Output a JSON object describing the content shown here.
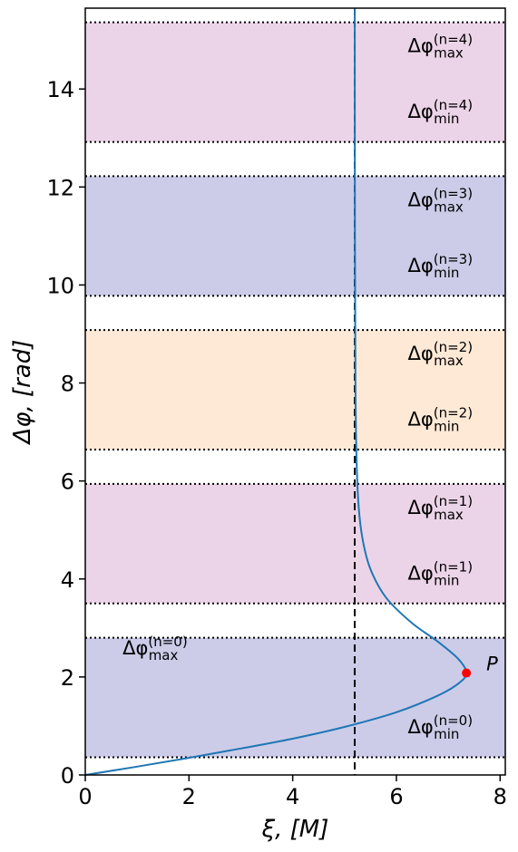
{
  "chart_data": {
    "type": "line",
    "xlabel": "ξ, [M]",
    "ylabel": "Δφ, [rad]",
    "xlim": [
      0,
      8.1
    ],
    "ylim": [
      0,
      15.65
    ],
    "x_ticks": [
      "0",
      "2",
      "4",
      "6",
      "8"
    ],
    "y_ticks": [
      "0",
      "2",
      "4",
      "6",
      "8",
      "10",
      "12",
      "14"
    ],
    "asymptote_x": 5.196,
    "bands": [
      {
        "n": 0,
        "min": 0.36,
        "max": 2.8,
        "color": "#cccce9",
        "label_max": "Δφ",
        "label_max_sub": "max",
        "label_max_sup": "(n=0)",
        "label_min": "Δφ",
        "label_min_sub": "min",
        "label_min_sup": "(n=0)"
      },
      {
        "n": 1,
        "min": 3.5,
        "max": 5.94,
        "color": "#ecd4e8",
        "label_max": "Δφ",
        "label_max_sub": "max",
        "label_max_sup": "(n=1)",
        "label_min": "Δφ",
        "label_min_sub": "min",
        "label_min_sup": "(n=1)"
      },
      {
        "n": 2,
        "min": 6.64,
        "max": 9.08,
        "color": "#fde9d6",
        "label_max": "Δφ",
        "label_max_sub": "max",
        "label_max_sup": "(n=2)",
        "label_min": "Δφ",
        "label_min_sub": "min",
        "label_min_sup": "(n=2)"
      },
      {
        "n": 3,
        "min": 9.78,
        "max": 12.22,
        "color": "#cccce9",
        "label_max": "Δφ",
        "label_max_sub": "max",
        "label_max_sup": "(n=3)",
        "label_min": "Δφ",
        "label_min_sub": "min",
        "label_min_sup": "(n=3)"
      },
      {
        "n": 4,
        "min": 12.92,
        "max": 15.36,
        "color": "#ecd4e8",
        "label_max": "Δφ",
        "label_max_sub": "max",
        "label_max_sup": "(n=4)",
        "label_min": "Δφ",
        "label_min_sub": "min",
        "label_min_sup": "(n=4)"
      }
    ],
    "series": [
      {
        "color": "#1f77b4",
        "x": [
          0,
          1.0,
          2.0,
          3.0,
          4.0,
          5.0,
          6.0,
          6.8,
          7.2,
          7.35,
          7.2,
          6.8,
          6.3,
          5.8,
          5.5,
          5.35,
          5.27,
          5.23,
          5.21,
          5.2,
          5.197
        ],
        "y": [
          0,
          0.17,
          0.35,
          0.54,
          0.74,
          0.98,
          1.28,
          1.62,
          1.87,
          2.08,
          2.36,
          2.72,
          3.1,
          3.62,
          4.2,
          4.8,
          5.5,
          6.5,
          8.0,
          11.0,
          15.65
        ]
      }
    ],
    "point": {
      "label": "P",
      "x": 7.35,
      "y": 2.08,
      "color": "#ff0000"
    }
  }
}
